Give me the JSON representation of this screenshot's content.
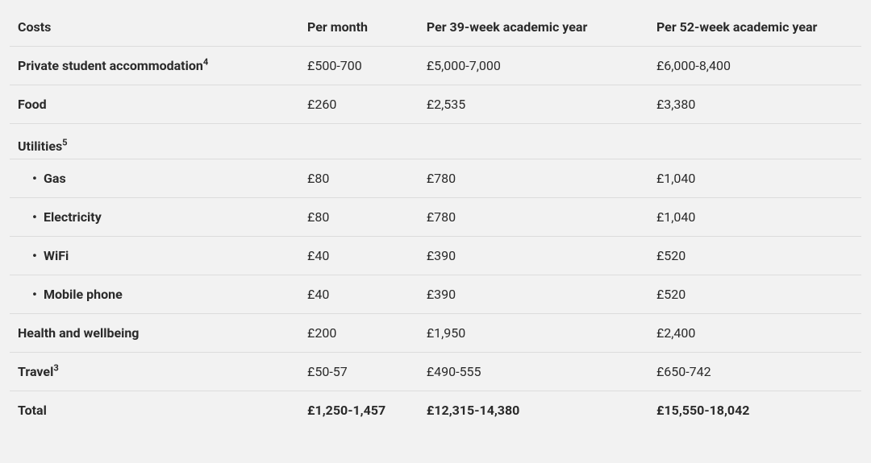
{
  "table": {
    "background_color": "#f2f2f2",
    "border_color": "#dcdcdc",
    "text_color": "#2a2a2a",
    "columns": [
      {
        "label": "Costs",
        "width_pct": 34
      },
      {
        "label": "Per month",
        "width_pct": 14
      },
      {
        "label": "Per 39-week academic year",
        "width_pct": 27
      },
      {
        "label": "Per 52-week academic year",
        "width_pct": 25
      }
    ],
    "rows": [
      {
        "label": "Private student accommodation",
        "footnote": "4",
        "per_month": "£500-700",
        "per_39": "£5,000-7,000",
        "per_52": "£6,000-8,400"
      },
      {
        "label": "Food",
        "per_month": "£260",
        "per_39": "£2,535",
        "per_52": "£3,380"
      }
    ],
    "utilities": {
      "header": "Utilities",
      "footnote": "5",
      "items": [
        {
          "label": "Gas",
          "per_month": "£80",
          "per_39": "£780",
          "per_52": "£1,040"
        },
        {
          "label": "Electricity",
          "per_month": "£80",
          "per_39": "£780",
          "per_52": "£1,040"
        },
        {
          "label": "WiFi",
          "per_month": "£40",
          "per_39": "£390",
          "per_52": "£520"
        },
        {
          "label": "Mobile phone",
          "per_month": "£40",
          "per_39": "£390",
          "per_52": "£520"
        }
      ]
    },
    "rows_after": [
      {
        "label": "Health and wellbeing",
        "per_month": "£200",
        "per_39": "£1,950",
        "per_52": "£2,400"
      },
      {
        "label": "Travel",
        "footnote": "3",
        "per_month": "£50-57",
        "per_39": "£490-555",
        "per_52": "£650-742"
      }
    ],
    "total": {
      "label": "Total",
      "per_month": "£1,250-1,457",
      "per_39": "£12,315-14,380",
      "per_52": "£15,550-18,042"
    }
  }
}
